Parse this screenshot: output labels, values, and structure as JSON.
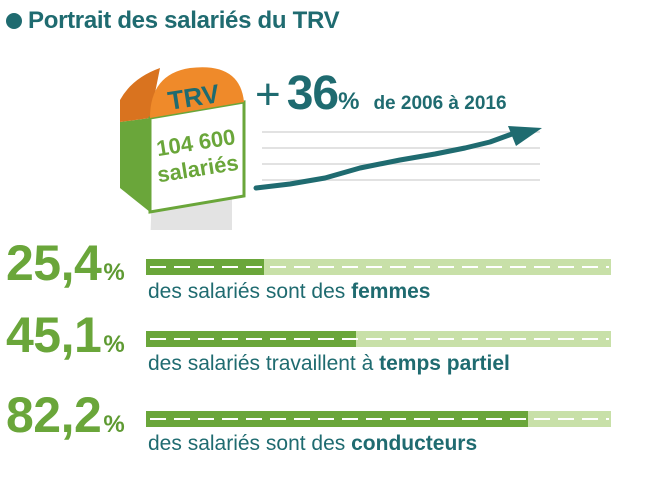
{
  "header": {
    "title": "Portrait des salariés du TRV"
  },
  "milestone": {
    "label": "TRV",
    "count": "104 600",
    "unit": "salariés"
  },
  "growth": {
    "sign": "+",
    "value": "36",
    "unit": "%",
    "period": "de 2006 à 2016"
  },
  "colors": {
    "accent": "#1f6b70",
    "green": "#6aa63a",
    "green_light": "#c8e0a8",
    "orange": "#ef8a2a"
  },
  "stats": [
    {
      "value": "25,4",
      "unit": "%",
      "fraction": 0.254,
      "caption_pre": "des salariés sont des ",
      "caption_bold": "femmes"
    },
    {
      "value": "45,1",
      "unit": "%",
      "fraction": 0.451,
      "caption_pre": "des salariés travaillent à ",
      "caption_bold": "temps partiel"
    },
    {
      "value": "82,2",
      "unit": "%",
      "fraction": 0.822,
      "caption_pre": "des salariés sont des ",
      "caption_bold": "conducteurs"
    }
  ]
}
